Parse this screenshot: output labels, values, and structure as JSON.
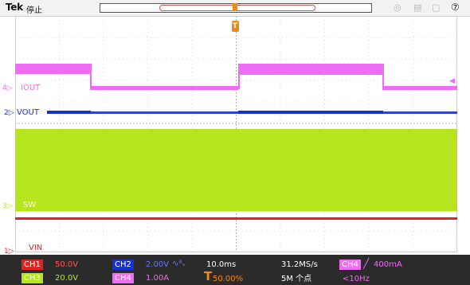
{
  "topbar": {
    "brand": "Tek",
    "state": "停止",
    "icons": [
      "network-icon",
      "save-icon",
      "help-icon"
    ],
    "help_glyph": "?"
  },
  "trigger_marker": {
    "glyph": "T"
  },
  "channels": {
    "ch1_marker": "1▷",
    "ch2_marker": "2▷",
    "ch4_marker": "4▷",
    "ch3_marker": "3▷",
    "iout_label": "IOUT",
    "vout_label": "VOUT",
    "sw_label": "SW",
    "vin_label": "VIN"
  },
  "status": {
    "ch1": {
      "label": "CH1",
      "value": "50.0V",
      "color": "#ff3030"
    },
    "ch2": {
      "label": "CH2",
      "value": "2.00V",
      "bw": "∿ᴮᵥ",
      "color": "#3a5bff"
    },
    "ch3": {
      "label": "CH3",
      "value": "20.0V",
      "color": "#b5e61d"
    },
    "ch4": {
      "label": "CH4",
      "value": "1.00A",
      "color": "#ff66ff"
    },
    "timebase": "10.0ms",
    "trigger_pos": "50.00%",
    "sample_rate": "31.2MS/s",
    "record_length": "5M 个点",
    "trigger_source": "CH4",
    "trigger_level": "400mA",
    "trigger_freq": "<10Hz"
  },
  "colors": {
    "ch1": "#e8201e",
    "ch2": "#1530d6",
    "ch3": "#b5e61d",
    "ch4": "#f06cf2",
    "trigger": "#f08a14"
  }
}
